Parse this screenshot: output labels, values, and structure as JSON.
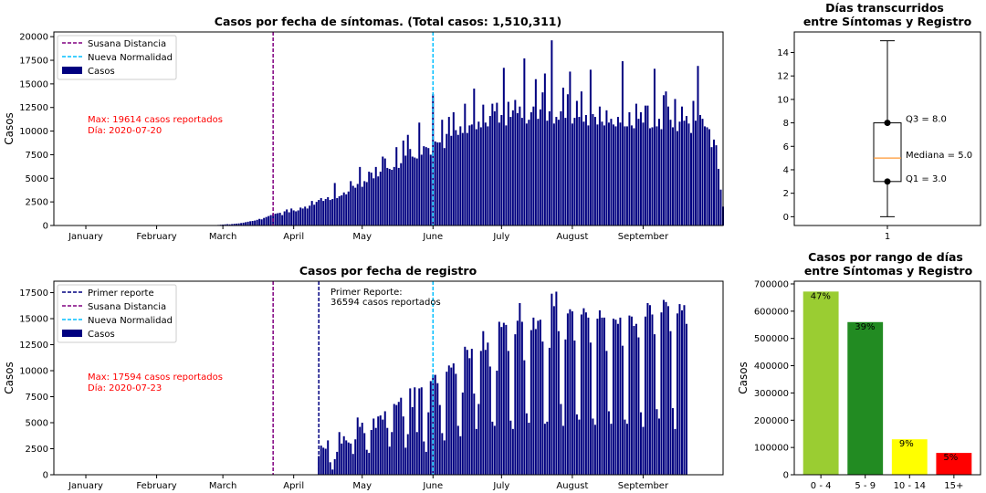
{
  "chart_data": [
    {
      "id": "sintomas",
      "type": "bar",
      "title": "Casos por fecha de síntomas. (Total casos: 1,510,311)",
      "ylabel": "Casos",
      "xlabel": "",
      "ylim": [
        0,
        20500
      ],
      "yticks": [
        0,
        2500,
        5000,
        7500,
        10000,
        12500,
        15000,
        17500,
        20000
      ],
      "x_range": [
        "2019-12-18",
        "2020-10-06"
      ],
      "month_ticks": [
        {
          "date": "2020-01-01",
          "label": "January"
        },
        {
          "date": "2020-02-01",
          "label": "February"
        },
        {
          "date": "2020-03-01",
          "label": "March"
        },
        {
          "date": "2020-04-01",
          "label": "April"
        },
        {
          "date": "2020-05-01",
          "label": "May"
        },
        {
          "date": "2020-06-01",
          "label": "June"
        },
        {
          "date": "2020-07-01",
          "label": "July"
        },
        {
          "date": "2020-08-01",
          "label": "August"
        },
        {
          "date": "2020-09-01",
          "label": "September"
        }
      ],
      "vlines": [
        {
          "date": "2020-03-23",
          "color": "#800080",
          "legend_label": "Susana Distancia"
        },
        {
          "date": "2020-06-01",
          "color": "#00bfff",
          "legend_label": "Nueva Normalidad"
        }
      ],
      "series": [
        {
          "name": "Casos",
          "color": "#000080"
        }
      ],
      "bar_color": "#000080",
      "start_date": "2020-02-27",
      "values": [
        30,
        60,
        80,
        100,
        120,
        140,
        120,
        150,
        180,
        200,
        220,
        260,
        300,
        350,
        400,
        450,
        480,
        520,
        600,
        700,
        650,
        800,
        900,
        1000,
        1100,
        1200,
        1250,
        1300,
        1350,
        1100,
        1500,
        1700,
        1400,
        1800,
        1600,
        1500,
        1600,
        1900,
        1800,
        2000,
        1800,
        2100,
        2600,
        2200,
        2500,
        2700,
        2900,
        2600,
        2800,
        3000,
        2700,
        2800,
        4500,
        2900,
        3100,
        3200,
        3500,
        3300,
        3600,
        4700,
        4200,
        4000,
        4400,
        6200,
        4100,
        4700,
        4600,
        5700,
        5600,
        5000,
        6200,
        5200,
        5700,
        7300,
        7100,
        6100,
        6000,
        5900,
        6200,
        8300,
        6100,
        6600,
        9000,
        7400,
        9600,
        8100,
        7300,
        7200,
        7100,
        10900,
        7500,
        8400,
        8300,
        8200,
        7500,
        13900,
        8900,
        8800,
        8800,
        11200,
        8200,
        9700,
        11500,
        9500,
        12000,
        10100,
        9600,
        10500,
        9800,
        12900,
        9800,
        10600,
        10700,
        14500,
        10200,
        11000,
        10400,
        12800,
        10900,
        10500,
        11600,
        12900,
        12100,
        13000,
        10900,
        11700,
        16700,
        10600,
        13100,
        11500,
        12200,
        13300,
        11900,
        12600,
        11400,
        17700,
        10800,
        11200,
        12000,
        12600,
        15500,
        11300,
        12300,
        14100,
        16100,
        11100,
        12100,
        19614,
        10800,
        11500,
        11200,
        12100,
        14600,
        11400,
        13900,
        16300,
        10800,
        11400,
        13200,
        11500,
        14200,
        11000,
        11700,
        10600,
        16500,
        11800,
        11500,
        10700,
        12600,
        11000,
        10600,
        12200,
        10900,
        11300,
        10700,
        10500,
        11500,
        10900,
        17400,
        10500,
        10500,
        12000,
        10600,
        10300,
        12900,
        11300,
        12000,
        10900,
        12700,
        12700,
        10300,
        10400,
        16600,
        10500,
        11300,
        10200,
        13800,
        14200,
        12600,
        11200,
        10400,
        13400,
        10000,
        11000,
        12600,
        11100,
        11600,
        10800,
        9800,
        13200,
        11100,
        16900,
        11700,
        11300,
        10500,
        10400,
        10200,
        8300,
        9100,
        8500,
        6000,
        3800,
        2000
      ],
      "annotation": {
        "lines": [
          "Max: 19614 casos reportados",
          "Día: 2020-07-20"
        ],
        "color": "#ff0000"
      }
    },
    {
      "id": "registro",
      "type": "bar",
      "title": "Casos por fecha de registro",
      "ylabel": "Casos",
      "xlabel": "",
      "ylim": [
        0,
        18600
      ],
      "yticks": [
        0,
        2500,
        5000,
        7500,
        10000,
        12500,
        15000,
        17500
      ],
      "x_range": [
        "2019-12-18",
        "2020-10-06"
      ],
      "month_ticks": [
        {
          "date": "2020-01-01",
          "label": "January"
        },
        {
          "date": "2020-02-01",
          "label": "February"
        },
        {
          "date": "2020-03-01",
          "label": "March"
        },
        {
          "date": "2020-04-01",
          "label": "April"
        },
        {
          "date": "2020-05-01",
          "label": "May"
        },
        {
          "date": "2020-06-01",
          "label": "June"
        },
        {
          "date": "2020-07-01",
          "label": "July"
        },
        {
          "date": "2020-08-01",
          "label": "August"
        },
        {
          "date": "2020-09-01",
          "label": "September"
        }
      ],
      "vlines": [
        {
          "date": "2020-04-12",
          "color": "#000080",
          "legend_label": "Primer reporte"
        },
        {
          "date": "2020-03-23",
          "color": "#800080",
          "legend_label": "Susana Distancia"
        },
        {
          "date": "2020-06-01",
          "color": "#00bfff",
          "legend_label": "Nueva Normalidad"
        }
      ],
      "series": [
        {
          "name": "Casos",
          "color": "#000080"
        }
      ],
      "bar_color": "#000080",
      "start_date": "2020-04-12",
      "values": [
        1800,
        2800,
        2600,
        2500,
        3300,
        1200,
        500,
        1500,
        2200,
        4100,
        3000,
        3700,
        3300,
        3100,
        3000,
        2000,
        3400,
        5500,
        4600,
        5000,
        4000,
        2400,
        2100,
        4300,
        5400,
        4500,
        5600,
        5700,
        5300,
        6100,
        4500,
        2700,
        4100,
        6800,
        6700,
        7000,
        7400,
        5600,
        2600,
        3900,
        8300,
        6500,
        8400,
        4100,
        8300,
        8400,
        3200,
        2200,
        6000,
        9000,
        9600,
        9600,
        8800,
        6700,
        4000,
        3300,
        9900,
        10500,
        10300,
        10700,
        9700,
        4700,
        3700,
        7900,
        12300,
        12000,
        11200,
        12100,
        7800,
        4400,
        6800,
        11900,
        13800,
        12000,
        12700,
        10400,
        5100,
        4700,
        10000,
        14700,
        14200,
        14600,
        14400,
        11900,
        5200,
        4400,
        13500,
        14800,
        16500,
        14700,
        11000,
        5900,
        5000,
        13900,
        15100,
        14000,
        14800,
        14900,
        12800,
        4900,
        5100,
        12200,
        17400,
        16200,
        17594,
        13800,
        6800,
        4700,
        13000,
        15500,
        15900,
        15700,
        12900,
        5800,
        5300,
        15400,
        16000,
        15600,
        15100,
        12700,
        5400,
        4800,
        15000,
        15800,
        15100,
        15100,
        11900,
        6100,
        4900,
        15000,
        14900,
        14500,
        15100,
        12400,
        5300,
        4900,
        15300,
        15200,
        14300,
        14500,
        13200,
        6000,
        4600,
        15200,
        16500,
        16300,
        15400,
        13500,
        6300,
        5400,
        15600,
        16800,
        16600,
        16200,
        13800,
        6400,
        4400,
        15500,
        16400,
        15800,
        16300,
        14500
      ],
      "annotations": [
        {
          "lines": [
            "Primer Reporte:",
            "36594 casos reportados"
          ],
          "color": "#000000"
        },
        {
          "lines": [
            "Max: 17594 casos reportados",
            "Día: 2020-07-23"
          ],
          "color": "#ff0000"
        }
      ]
    },
    {
      "id": "boxplot",
      "type": "box",
      "title_lines": [
        "Días transcurridos",
        "entre Síntomas y Registro"
      ],
      "categories": [
        "1"
      ],
      "ylim": [
        -0.75,
        15.75
      ],
      "yticks": [
        0,
        2,
        4,
        6,
        8,
        10,
        12,
        14
      ],
      "whisker_low": 0,
      "q1": 3.0,
      "median": 5.0,
      "q3": 8.0,
      "whisker_high": 15,
      "median_color": "#ff9933",
      "labels": {
        "q3": "Q3 = 8.0",
        "median": "Mediana = 5.0",
        "q1": "Q1 = 3.0"
      }
    },
    {
      "id": "rangos",
      "type": "bar",
      "title_lines": [
        "Casos por rango de días",
        "entre Síntomas y Registro"
      ],
      "ylabel": "Casos",
      "ylim": [
        0,
        710000
      ],
      "yticks": [
        0,
        100000,
        200000,
        300000,
        400000,
        500000,
        600000,
        700000
      ],
      "categories": [
        "0 - 4",
        "5 - 9",
        "10 - 14",
        "15+"
      ],
      "values": [
        672000,
        560000,
        130000,
        80000
      ],
      "percent_labels": [
        "47%",
        "39%",
        "9%",
        "5%"
      ],
      "colors": [
        "#9acd32",
        "#228b22",
        "#ffff00",
        "#ff0000"
      ]
    }
  ]
}
